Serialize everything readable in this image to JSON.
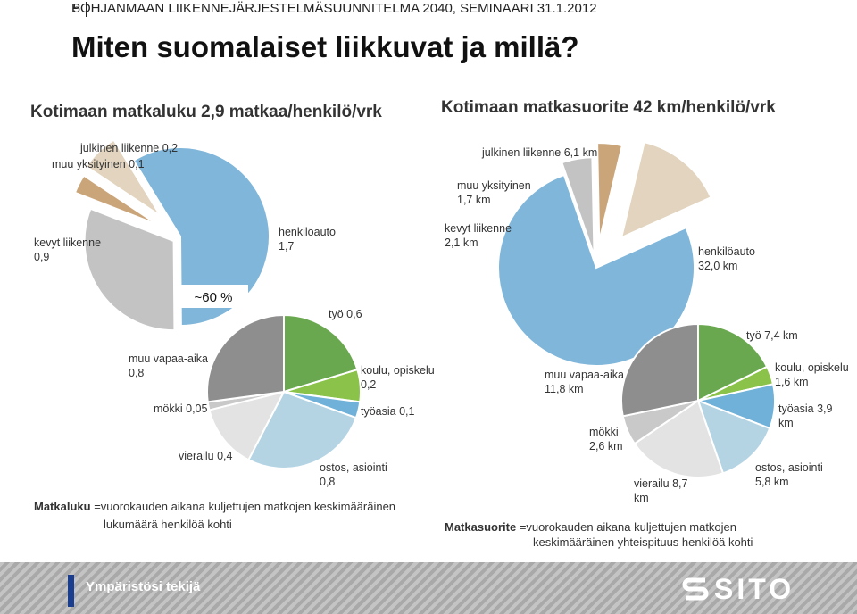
{
  "header": {
    "page_number": "5",
    "running_title": "POHJANMAAN LIIKENNEJÄRJESTELMÄSUUNNITELMA 2040, SEMINAARI 31.1.2012",
    "title": "Miten suomalaiset liikkuvat ja millä?"
  },
  "chart_data": [
    {
      "type": "pie",
      "title": "Kotimaan matkaluku 2,9 matkaa/henkilö/vrk",
      "categories": [
        "henkilöauto",
        "kevyt liikenne",
        "muu yksityinen",
        "julkinen liikenne"
      ],
      "values": [
        1.7,
        0.9,
        0.1,
        0.2
      ],
      "slice_labels": [
        [
          "henkilöauto",
          "1,7"
        ],
        [
          "kevyt liikenne",
          "0,9"
        ],
        [
          "muu yksityinen 0,1"
        ],
        [
          "julkinen liikenne 0,2"
        ]
      ],
      "colors": [
        "#7fb6da",
        "#c3c3c3",
        "#cba57a",
        "#e2d4be"
      ],
      "annotation": "~60 %"
    },
    {
      "type": "pie",
      "title": "",
      "categories": [
        "työ",
        "koulu, opiskelu",
        "työasia",
        "ostos, asiointi",
        "vierailu",
        "mökki",
        "muu vapaa-aika"
      ],
      "values": [
        0.6,
        0.2,
        0.1,
        0.8,
        0.4,
        0.05,
        0.8
      ],
      "slice_labels": [
        [
          "työ 0,6"
        ],
        [
          "koulu, opiskelu",
          "0,2"
        ],
        [
          "työasia 0,1"
        ],
        [
          "ostos, asiointi",
          "0,8"
        ],
        [
          "vierailu 0,4"
        ],
        [
          "mökki 0,05"
        ],
        [
          "muu vapaa-aika",
          "0,8"
        ]
      ],
      "colors": [
        "#6aa84f",
        "#8bc34a",
        "#6fb1d8",
        "#b4d4e4",
        "#e3e3e3",
        "#c9c9c9",
        "#8e8e8e"
      ]
    },
    {
      "type": "pie",
      "title": "Kotimaan matkasuorite 42 km/henkilö/vrk",
      "categories": [
        "henkilöauto",
        "kevyt liikenne",
        "muu yksityinen",
        "julkinen liikenne"
      ],
      "values": [
        32.0,
        2.1,
        1.7,
        6.1
      ],
      "slice_labels": [
        [
          "henkilöauto",
          "32,0 km"
        ],
        [
          "kevyt liikenne",
          "2,1 km"
        ],
        [
          "muu yksityinen",
          "1,7 km"
        ],
        [
          "julkinen liikenne 6,1 km"
        ]
      ],
      "colors": [
        "#7fb6da",
        "#c3c3c3",
        "#cba57a",
        "#e2d4be"
      ]
    },
    {
      "type": "pie",
      "title": "",
      "categories": [
        "työ",
        "koulu, opiskelu",
        "työasia",
        "ostos, asiointi",
        "vierailu",
        "mökki",
        "muu vapaa-aika"
      ],
      "values": [
        7.4,
        1.6,
        3.9,
        5.8,
        8.7,
        2.6,
        11.8
      ],
      "slice_labels": [
        [
          "työ 7,4 km"
        ],
        [
          "koulu, opiskelu",
          "1,6 km"
        ],
        [
          "työasia 3,9",
          "km"
        ],
        [
          "ostos, asiointi",
          "5,8 km"
        ],
        [
          "vierailu 8,7",
          "km"
        ],
        [
          "mökki",
          "2,6 km"
        ],
        [
          "muu vapaa-aika",
          "11,8 km"
        ]
      ],
      "colors": [
        "#6aa84f",
        "#8bc34a",
        "#6fb1d8",
        "#b4d4e4",
        "#e3e3e3",
        "#c9c9c9",
        "#8e8e8e"
      ]
    }
  ],
  "definitions": {
    "left": {
      "term": "Matkaluku",
      "line1": " =vuorokauden aikana kuljettujen matkojen keskimääräinen",
      "line2": "lukumäärä henkilöä kohti"
    },
    "right": {
      "term": "Matkasuorite",
      "line1": " =vuorokauden aikana kuljettujen matkojen",
      "line2": "keskimääräinen yhteispituus henkilöä kohti"
    }
  },
  "footer": {
    "text": "Ympäristösi tekijä",
    "logo": "SITO",
    "logo_icon": "sito-logo-icon"
  }
}
